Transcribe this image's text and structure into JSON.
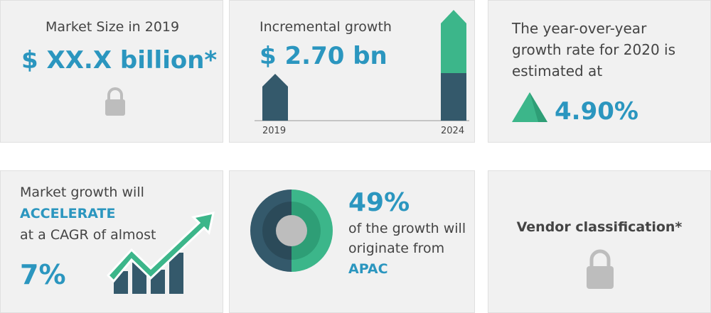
{
  "market_size": {
    "title": "Market Size in 2019",
    "value": "$ XX.X billion*"
  },
  "incremental": {
    "title": "Incremental growth",
    "value": "$ 2.70 bn",
    "start_label": "2019",
    "end_label": "2024"
  },
  "yoy": {
    "lines": [
      "The year-over-year",
      "growth rate for 2020 is",
      "estimated at"
    ],
    "value": "4.90%"
  },
  "cagr": {
    "line1": "Market growth will",
    "highlight": "ACCELERATE",
    "line2": "at a CAGR of almost",
    "value": "7%"
  },
  "region": {
    "value": "49%",
    "lines": [
      "of the growth will",
      "originate from"
    ],
    "name": "APAC"
  },
  "vendor": {
    "title": "Vendor classification*"
  }
}
